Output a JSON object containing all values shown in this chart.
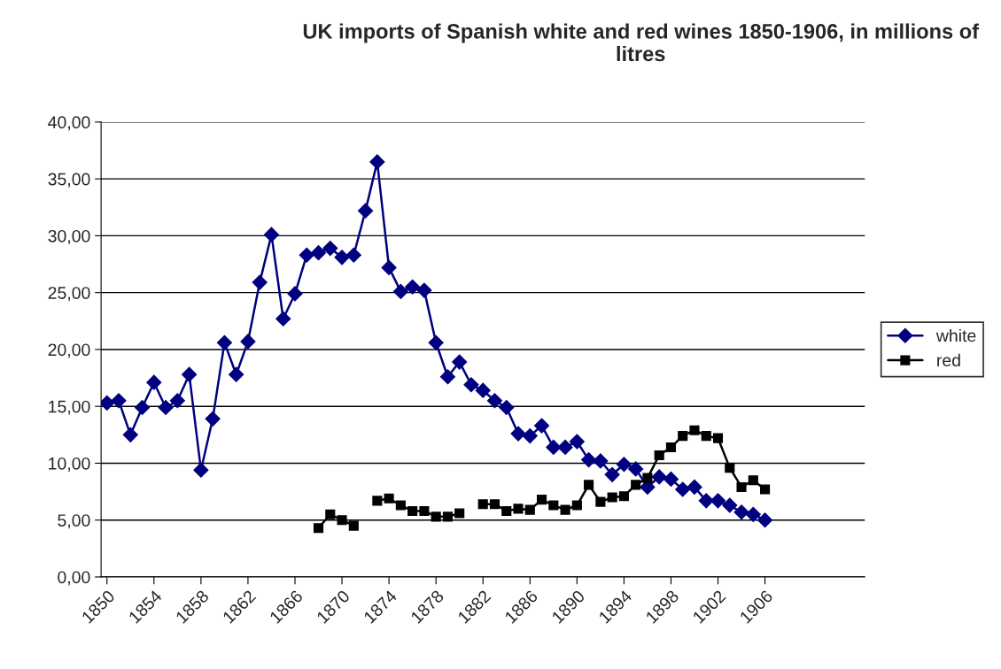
{
  "chart_data": {
    "type": "line",
    "title": "UK imports of Spanish white and red wines 1850-1906, in millions of litres",
    "x": [
      1850,
      1851,
      1852,
      1853,
      1854,
      1855,
      1856,
      1857,
      1858,
      1859,
      1860,
      1861,
      1862,
      1863,
      1864,
      1865,
      1866,
      1867,
      1868,
      1869,
      1870,
      1871,
      1872,
      1873,
      1874,
      1875,
      1876,
      1877,
      1878,
      1879,
      1880,
      1881,
      1882,
      1883,
      1884,
      1885,
      1886,
      1887,
      1888,
      1889,
      1890,
      1891,
      1892,
      1893,
      1894,
      1895,
      1896,
      1897,
      1898,
      1899,
      1900,
      1901,
      1902,
      1903,
      1904,
      1905,
      1906
    ],
    "series": [
      {
        "name": "white",
        "color": "#000080",
        "marker": "diamond",
        "values": [
          15.3,
          15.5,
          12.5,
          14.9,
          17.1,
          14.9,
          15.5,
          17.8,
          9.4,
          13.9,
          20.6,
          17.8,
          20.7,
          25.9,
          30.1,
          22.7,
          24.9,
          28.3,
          28.5,
          28.9,
          28.1,
          28.3,
          32.2,
          36.5,
          27.2,
          25.1,
          25.5,
          25.2,
          20.6,
          17.6,
          18.9,
          16.9,
          16.4,
          15.5,
          14.9,
          12.6,
          12.4,
          13.3,
          11.4,
          11.4,
          11.9,
          10.3,
          10.2,
          9.0,
          9.9,
          9.5,
          7.9,
          8.8,
          8.6,
          7.7,
          7.9,
          6.7,
          6.7,
          6.3,
          5.7,
          5.5,
          5.0
        ]
      },
      {
        "name": "red",
        "color": "#000000",
        "marker": "square",
        "values": [
          null,
          null,
          null,
          null,
          null,
          null,
          null,
          null,
          null,
          null,
          null,
          null,
          null,
          null,
          null,
          null,
          null,
          null,
          4.3,
          5.5,
          5.0,
          4.5,
          null,
          6.7,
          6.9,
          6.3,
          5.8,
          5.8,
          5.3,
          5.3,
          5.6,
          null,
          6.4,
          6.4,
          5.8,
          6.0,
          5.9,
          6.8,
          6.3,
          5.9,
          6.3,
          8.1,
          6.6,
          7.0,
          7.1,
          8.1,
          8.7,
          10.7,
          11.4,
          12.4,
          12.9,
          12.4,
          12.2,
          9.6,
          7.9,
          8.5,
          7.7
        ]
      }
    ],
    "xlim": [
      1849.5,
      1914.5
    ],
    "xticks": [
      1850,
      1854,
      1858,
      1862,
      1866,
      1870,
      1874,
      1878,
      1882,
      1886,
      1890,
      1894,
      1898,
      1902,
      1906
    ],
    "ylim": [
      0,
      40
    ],
    "yticks": [
      {
        "value": 0,
        "label": "0,00"
      },
      {
        "value": 5,
        "label": "5,00"
      },
      {
        "value": 10,
        "label": "10,00"
      },
      {
        "value": 15,
        "label": "15,00"
      },
      {
        "value": 20,
        "label": "20,00"
      },
      {
        "value": 25,
        "label": "25,00"
      },
      {
        "value": 30,
        "label": "30,00"
      },
      {
        "value": 35,
        "label": "35,00"
      },
      {
        "value": 40,
        "label": "40,00"
      }
    ],
    "grid": "y",
    "legend": "right",
    "line_style": "solid"
  }
}
